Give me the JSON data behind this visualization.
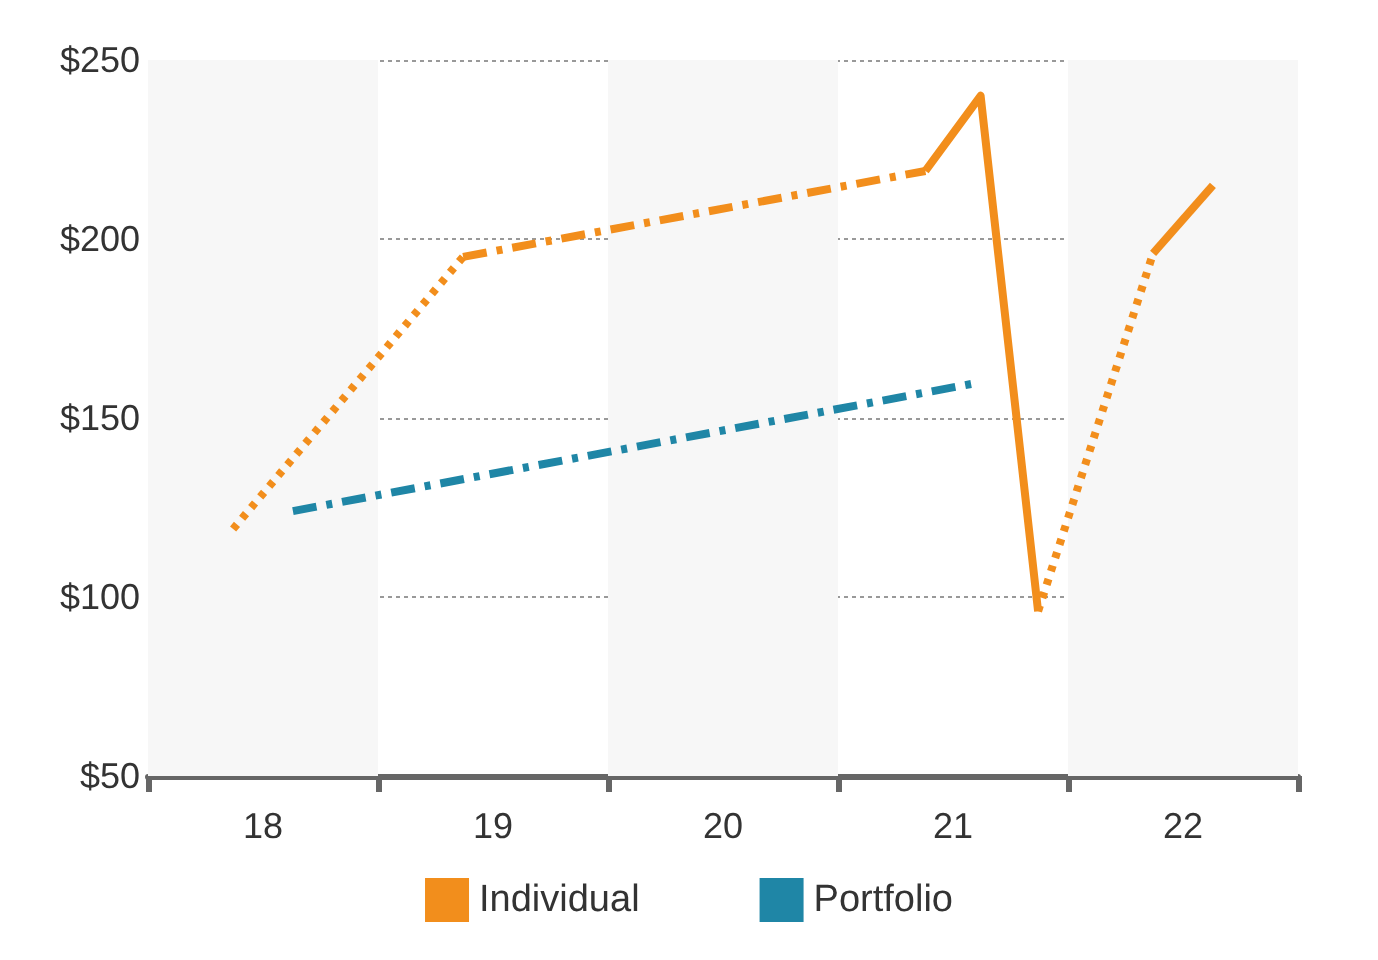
{
  "chart_data": {
    "type": "line",
    "xlim": [
      17.5,
      22.5
    ],
    "xticks": [
      {
        "value": 17.5,
        "label": null
      },
      18,
      {
        "value": 18.5,
        "label": null
      },
      19,
      {
        "value": 19.5,
        "label": null
      },
      20,
      {
        "value": 20.5,
        "label": null
      },
      21,
      {
        "value": 21.5,
        "label": null
      },
      22,
      {
        "value": 22.5,
        "label": null
      }
    ],
    "ylim": [
      50,
      250
    ],
    "yticks": [
      {
        "value": 50,
        "label": "$50"
      },
      {
        "value": 100,
        "label": "$100"
      },
      {
        "value": 150,
        "label": "$150"
      },
      {
        "value": 200,
        "label": "$200"
      },
      {
        "value": 250,
        "label": "$250"
      }
    ],
    "grid": "y",
    "legend": "bottom",
    "marker": "none",
    "bands": [
      {
        "axis": "x",
        "from": 17.5,
        "to": 18.5,
        "color": "#f7f7f7"
      },
      {
        "axis": "x",
        "from": 19.5,
        "to": 20.5,
        "color": "#f7f7f7"
      },
      {
        "axis": "x",
        "from": 21.5,
        "to": 22.5,
        "color": "#f7f7f7"
      }
    ],
    "series": [
      {
        "name": "Individual",
        "color": "#f28e1c",
        "line_style": "dotted",
        "x": [
          17.87,
          18.87
        ],
        "values": [
          119,
          195
        ]
      },
      {
        "color": "#f28e1c",
        "line_style": "dashdot",
        "x": [
          18.87,
          20.88
        ],
        "values": [
          195,
          219
        ]
      },
      {
        "color": "#f28e1c",
        "line_style": "solid",
        "x": [
          20.88,
          21.12,
          21.37
        ],
        "values": [
          219,
          240,
          96
        ]
      },
      {
        "color": "#f28e1c",
        "line_style": "dotted",
        "x": [
          21.37,
          21.87
        ],
        "values": [
          96,
          196
        ]
      },
      {
        "color": "#f28e1c",
        "line_style": "solid",
        "x": [
          21.87,
          22.13
        ],
        "values": [
          196,
          215
        ]
      },
      {
        "name": "Portfolio",
        "color": "#1f86a6",
        "line_style": "dashdot",
        "x": [
          18.13,
          21.12
        ],
        "values": [
          124,
          160
        ]
      }
    ]
  }
}
